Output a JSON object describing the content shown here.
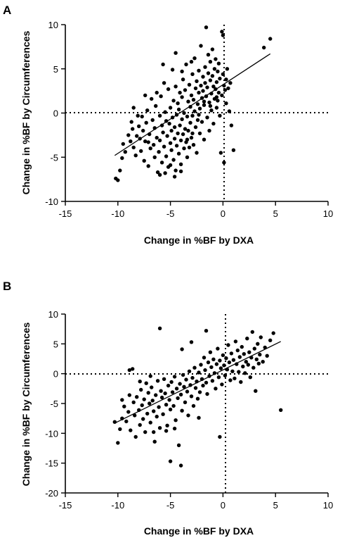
{
  "chart_data": [
    {
      "type": "scatter",
      "panel_label": "A",
      "xlabel": "Change in %BF by DXA",
      "ylabel": "Change in %BF by Circumferences",
      "xlim": [
        -15,
        10
      ],
      "ylim": [
        -10,
        10
      ],
      "xticks": [
        -15,
        -10,
        -5,
        0,
        5,
        10
      ],
      "yticks": [
        -10,
        -5,
        0,
        5,
        10
      ],
      "reference_lines": {
        "x": 0,
        "y": 0,
        "style": "dotted"
      },
      "fit_line": {
        "x": [
          -10.3,
          4.5
        ],
        "y": [
          -4.8,
          6.7
        ]
      },
      "points": [
        [
          -10.2,
          -7.4
        ],
        [
          -10.0,
          -7.6
        ],
        [
          -9.8,
          -6.5
        ],
        [
          -9.6,
          -5.1
        ],
        [
          -9.5,
          -3.5
        ],
        [
          -9.3,
          -4.4
        ],
        [
          -9.0,
          -2.5
        ],
        [
          -8.8,
          -3.2
        ],
        [
          -8.7,
          -1.0
        ],
        [
          -8.6,
          -1.8
        ],
        [
          -8.5,
          0.6
        ],
        [
          -8.5,
          -3.9
        ],
        [
          -8.3,
          -4.8
        ],
        [
          -8.2,
          -2.6
        ],
        [
          -8.0,
          -1.5
        ],
        [
          -7.9,
          -2.9
        ],
        [
          -7.8,
          -4.3
        ],
        [
          -7.7,
          -0.4
        ],
        [
          -7.6,
          -2.0
        ],
        [
          -7.5,
          -5.4
        ],
        [
          -7.4,
          -3.2
        ],
        [
          -7.3,
          -1.1
        ],
        [
          -7.2,
          0.3
        ],
        [
          -7.1,
          -6.0
        ],
        [
          -7.0,
          -2.4
        ],
        [
          -6.9,
          -4.0
        ],
        [
          -6.8,
          1.6
        ],
        [
          -6.7,
          -0.8
        ],
        [
          -6.6,
          -3.6
        ],
        [
          -6.5,
          -5.0
        ],
        [
          -6.5,
          -1.7
        ],
        [
          -6.4,
          0.8
        ],
        [
          -6.3,
          -2.8
        ],
        [
          -6.2,
          -6.7
        ],
        [
          -6.1,
          -4.4
        ],
        [
          -6.0,
          -0.3
        ],
        [
          -6.0,
          -3.1
        ],
        [
          -5.9,
          1.9
        ],
        [
          -5.8,
          -5.6
        ],
        [
          -5.8,
          -1.4
        ],
        [
          -5.7,
          -2.2
        ],
        [
          -5.6,
          3.4
        ],
        [
          -5.6,
          -3.8
        ],
        [
          -5.5,
          0.1
        ],
        [
          -5.4,
          -4.9
        ],
        [
          -5.4,
          -0.9
        ],
        [
          -5.3,
          -2.6
        ],
        [
          -5.2,
          2.7
        ],
        [
          -5.2,
          -6.1
        ],
        [
          -5.1,
          -1.2
        ],
        [
          -5.0,
          -3.4
        ],
        [
          -5.0,
          0.6
        ],
        [
          -4.9,
          -4.2
        ],
        [
          -4.9,
          -2.0
        ],
        [
          -4.8,
          4.9
        ],
        [
          -4.8,
          -0.5
        ],
        [
          -4.7,
          -5.3
        ],
        [
          -4.7,
          1.4
        ],
        [
          -4.6,
          -2.9
        ],
        [
          -4.6,
          -1.6
        ],
        [
          -4.5,
          -6.5
        ],
        [
          -4.5,
          3.0
        ],
        [
          -4.4,
          -3.7
        ],
        [
          -4.4,
          -0.2
        ],
        [
          -4.3,
          -2.3
        ],
        [
          -4.3,
          1.1
        ],
        [
          -4.2,
          -4.6
        ],
        [
          -4.2,
          0.4
        ],
        [
          -4.1,
          -1.4
        ],
        [
          -4.1,
          2.3
        ],
        [
          -4.0,
          -3.1
        ],
        [
          -4.0,
          -5.8
        ],
        [
          -3.9,
          -0.7
        ],
        [
          -3.9,
          1.8
        ],
        [
          -3.8,
          -2.4
        ],
        [
          -3.8,
          3.8
        ],
        [
          -3.7,
          -4.0
        ],
        [
          -3.7,
          0.0
        ],
        [
          -3.6,
          -1.8
        ],
        [
          -3.6,
          2.6
        ],
        [
          -3.5,
          -3.3
        ],
        [
          -3.5,
          5.5
        ],
        [
          -3.4,
          -0.4
        ],
        [
          -3.4,
          -5.0
        ],
        [
          -3.3,
          1.3
        ],
        [
          -3.3,
          -2.0
        ],
        [
          -3.2,
          3.2
        ],
        [
          -3.2,
          -3.9
        ],
        [
          -3.1,
          0.7
        ],
        [
          -3.1,
          -1.1
        ],
        [
          -3.0,
          2.0
        ],
        [
          -3.0,
          -2.8
        ],
        [
          -2.9,
          4.4
        ],
        [
          -2.9,
          -0.3
        ],
        [
          -2.8,
          1.5
        ],
        [
          -2.8,
          -3.6
        ],
        [
          -2.7,
          6.2
        ],
        [
          -2.7,
          0.2
        ],
        [
          -2.6,
          2.8
        ],
        [
          -2.6,
          -1.6
        ],
        [
          -2.5,
          3.6
        ],
        [
          -2.5,
          -4.5
        ],
        [
          -2.4,
          1.0
        ],
        [
          -2.4,
          -0.8
        ],
        [
          -2.3,
          4.8
        ],
        [
          -2.3,
          2.3
        ],
        [
          -2.2,
          -2.3
        ],
        [
          -2.2,
          0.5
        ],
        [
          -2.1,
          3.1
        ],
        [
          -2.1,
          7.6
        ],
        [
          -2.0,
          1.7
        ],
        [
          -2.0,
          -1.0
        ],
        [
          -1.9,
          4.1
        ],
        [
          -1.9,
          2.5
        ],
        [
          -1.8,
          -3.0
        ],
        [
          -1.8,
          0.9
        ],
        [
          -1.7,
          5.2
        ],
        [
          -1.7,
          3.4
        ],
        [
          -1.6,
          9.7
        ],
        [
          -1.6,
          1.9
        ],
        [
          -1.5,
          -0.5
        ],
        [
          -1.5,
          2.9
        ],
        [
          -1.4,
          4.5
        ],
        [
          -1.4,
          6.6
        ],
        [
          -1.3,
          1.2
        ],
        [
          -1.3,
          -2.0
        ],
        [
          -1.2,
          3.7
        ],
        [
          -1.2,
          5.8
        ],
        [
          -1.1,
          2.2
        ],
        [
          -1.1,
          0.3
        ],
        [
          -1.0,
          4.2
        ],
        [
          -1.0,
          7.2
        ],
        [
          -0.9,
          3.0
        ],
        [
          -0.9,
          -1.2
        ],
        [
          -0.8,
          1.6
        ],
        [
          -0.8,
          5.0
        ],
        [
          -0.7,
          2.7
        ],
        [
          -0.7,
          6.1
        ],
        [
          -0.6,
          3.5
        ],
        [
          -0.6,
          0.6
        ],
        [
          -0.5,
          4.7
        ],
        [
          -0.5,
          1.4
        ],
        [
          -0.4,
          2.3
        ],
        [
          -0.4,
          5.6
        ],
        [
          -0.3,
          3.9
        ],
        [
          -0.3,
          -0.3
        ],
        [
          -0.2,
          -4.5
        ],
        [
          -0.1,
          9.2
        ],
        [
          -0.1,
          2.0
        ],
        [
          0.0,
          8.8
        ],
        [
          0.0,
          4.4
        ],
        [
          0.1,
          3.1
        ],
        [
          0.1,
          -5.6
        ],
        [
          0.2,
          2.6
        ],
        [
          0.3,
          1.1
        ],
        [
          0.3,
          3.8
        ],
        [
          0.4,
          5.0
        ],
        [
          0.5,
          2.8
        ],
        [
          0.6,
          0.2
        ],
        [
          0.7,
          3.4
        ],
        [
          0.8,
          -1.4
        ],
        [
          1.0,
          -4.2
        ],
        [
          3.9,
          7.4
        ],
        [
          4.5,
          8.4
        ],
        [
          -7.1,
          -3.3
        ],
        [
          -6.0,
          -7.0
        ],
        [
          -5.5,
          -6.8
        ],
        [
          -5.0,
          -5.9
        ],
        [
          -4.6,
          -7.2
        ],
        [
          -4.0,
          -6.6
        ],
        [
          -3.4,
          -3.0
        ],
        [
          -2.9,
          -2.3
        ],
        [
          -2.3,
          -0.2
        ],
        [
          -1.8,
          1.3
        ],
        [
          -1.2,
          0.8
        ],
        [
          -0.6,
          1.8
        ],
        [
          -6.3,
          2.3
        ],
        [
          -7.4,
          2.0
        ],
        [
          -8.1,
          -0.3
        ],
        [
          -5.7,
          5.5
        ],
        [
          -4.5,
          6.8
        ],
        [
          -3.9,
          4.7
        ],
        [
          -3.0,
          5.8
        ]
      ]
    },
    {
      "type": "scatter",
      "panel_label": "B",
      "xlabel": "Change in %BF by DXA",
      "ylabel": "Change in %BF by Circumferences",
      "xlim": [
        -15,
        10
      ],
      "ylim": [
        -20,
        10
      ],
      "xticks": [
        -15,
        -10,
        -5,
        0,
        5,
        10
      ],
      "yticks": [
        -20,
        -15,
        -10,
        -5,
        0,
        5,
        10
      ],
      "reference_lines": {
        "x": 0,
        "y": 0,
        "style": "dotted"
      },
      "fit_line": {
        "x": [
          -10.3,
          5.5
        ],
        "y": [
          -8.3,
          5.4
        ]
      },
      "points": [
        [
          -10.3,
          -8.1
        ],
        [
          -10.0,
          -11.6
        ],
        [
          -9.8,
          -9.3
        ],
        [
          -9.6,
          -7.5
        ],
        [
          -9.4,
          -5.5
        ],
        [
          -9.2,
          -8.0
        ],
        [
          -9.0,
          -6.4
        ],
        [
          -8.9,
          0.6
        ],
        [
          -8.8,
          -9.5
        ],
        [
          -8.6,
          0.8
        ],
        [
          -8.5,
          -4.8
        ],
        [
          -8.4,
          -7.0
        ],
        [
          -8.3,
          -10.6
        ],
        [
          -8.2,
          -3.9
        ],
        [
          -8.0,
          -6.1
        ],
        [
          -7.9,
          -8.6
        ],
        [
          -7.8,
          -2.7
        ],
        [
          -7.7,
          -5.3
        ],
        [
          -7.6,
          -7.6
        ],
        [
          -7.5,
          -4.3
        ],
        [
          -7.4,
          -9.8
        ],
        [
          -7.3,
          -1.6
        ],
        [
          -7.2,
          -6.7
        ],
        [
          -7.1,
          -3.2
        ],
        [
          -7.0,
          -5.0
        ],
        [
          -6.9,
          -8.2
        ],
        [
          -6.8,
          -2.3
        ],
        [
          -6.7,
          -4.5
        ],
        [
          -6.6,
          -6.3
        ],
        [
          -6.5,
          -11.4
        ],
        [
          -6.4,
          -3.6
        ],
        [
          -6.3,
          -7.2
        ],
        [
          -6.2,
          -1.2
        ],
        [
          -6.1,
          -5.6
        ],
        [
          -6.0,
          -9.1
        ],
        [
          -6.0,
          7.6
        ],
        [
          -5.9,
          -2.9
        ],
        [
          -5.8,
          -4.0
        ],
        [
          -5.7,
          -6.8
        ],
        [
          -5.6,
          -0.9
        ],
        [
          -5.5,
          -3.3
        ],
        [
          -5.4,
          -5.2
        ],
        [
          -5.3,
          -8.7
        ],
        [
          -5.2,
          -2.0
        ],
        [
          -5.1,
          -4.4
        ],
        [
          -5.0,
          -14.7
        ],
        [
          -5.0,
          -6.0
        ],
        [
          -4.9,
          -1.4
        ],
        [
          -4.8,
          -3.1
        ],
        [
          -4.7,
          -5.4
        ],
        [
          -4.6,
          -0.5
        ],
        [
          -4.5,
          -7.8
        ],
        [
          -4.4,
          -2.5
        ],
        [
          -4.3,
          -4.1
        ],
        [
          -4.2,
          -12.0
        ],
        [
          -4.1,
          -1.7
        ],
        [
          -4.0,
          -15.4
        ],
        [
          -4.0,
          -3.5
        ],
        [
          -3.9,
          -6.2
        ],
        [
          -3.8,
          -0.2
        ],
        [
          -3.7,
          -2.2
        ],
        [
          -3.6,
          -4.8
        ],
        [
          -3.5,
          -1.0
        ],
        [
          -3.4,
          -3.0
        ],
        [
          -3.3,
          -7.0
        ],
        [
          -3.2,
          0.4
        ],
        [
          -3.1,
          -1.9
        ],
        [
          -3.0,
          -3.8
        ],
        [
          -2.9,
          -0.7
        ],
        [
          -2.8,
          -5.4
        ],
        [
          -2.7,
          1.0
        ],
        [
          -2.6,
          -2.4
        ],
        [
          -2.5,
          -1.3
        ],
        [
          -2.4,
          -4.2
        ],
        [
          -2.3,
          0.2
        ],
        [
          -2.2,
          -3.1
        ],
        [
          -2.1,
          1.5
        ],
        [
          -2.0,
          -0.9
        ],
        [
          -1.9,
          -2.0
        ],
        [
          -1.8,
          2.7
        ],
        [
          -1.7,
          0.6
        ],
        [
          -1.6,
          -1.5
        ],
        [
          -1.5,
          -3.4
        ],
        [
          -1.4,
          1.9
        ],
        [
          -1.3,
          -0.4
        ],
        [
          -1.2,
          3.6
        ],
        [
          -1.1,
          1.1
        ],
        [
          -1.0,
          -1.2
        ],
        [
          -0.9,
          2.4
        ],
        [
          -0.8,
          0.1
        ],
        [
          -0.7,
          -2.5
        ],
        [
          -0.6,
          1.6
        ],
        [
          -0.5,
          4.2
        ],
        [
          -0.4,
          -0.6
        ],
        [
          -0.3,
          2.2
        ],
        [
          -0.2,
          0.9
        ],
        [
          -0.1,
          -1.8
        ],
        [
          0.0,
          3.1
        ],
        [
          0.1,
          1.4
        ],
        [
          0.2,
          -0.3
        ],
        [
          0.3,
          2.6
        ],
        [
          0.4,
          0.7
        ],
        [
          0.5,
          4.8
        ],
        [
          0.6,
          1.9
        ],
        [
          0.7,
          -1.1
        ],
        [
          0.8,
          3.4
        ],
        [
          0.9,
          0.4
        ],
        [
          1.0,
          2.3
        ],
        [
          1.1,
          -0.8
        ],
        [
          1.2,
          5.4
        ],
        [
          1.3,
          1.6
        ],
        [
          1.4,
          3.9
        ],
        [
          1.5,
          0.3
        ],
        [
          1.6,
          2.8
        ],
        [
          1.7,
          -1.4
        ],
        [
          1.8,
          4.5
        ],
        [
          1.9,
          1.2
        ],
        [
          2.0,
          3.3
        ],
        [
          2.1,
          0.1
        ],
        [
          2.2,
          2.0
        ],
        [
          2.3,
          5.9
        ],
        [
          2.4,
          1.5
        ],
        [
          2.5,
          3.6
        ],
        [
          2.6,
          -0.6
        ],
        [
          2.7,
          2.7
        ],
        [
          2.8,
          7.0
        ],
        [
          2.9,
          1.0
        ],
        [
          3.0,
          4.2
        ],
        [
          3.1,
          -2.9
        ],
        [
          3.2,
          2.4
        ],
        [
          3.3,
          5.0
        ],
        [
          3.4,
          1.7
        ],
        [
          3.5,
          3.2
        ],
        [
          3.6,
          6.1
        ],
        [
          3.8,
          2.0
        ],
        [
          4.0,
          4.4
        ],
        [
          4.2,
          3.0
        ],
        [
          4.5,
          5.6
        ],
        [
          4.8,
          6.8
        ],
        [
          5.5,
          -6.1
        ],
        [
          -1.6,
          7.2
        ],
        [
          -3.9,
          4.1
        ],
        [
          -0.3,
          -10.6
        ],
        [
          -6.6,
          -9.8
        ],
        [
          -7.9,
          -1.3
        ],
        [
          -5.4,
          -9.6
        ],
        [
          -2.3,
          -7.4
        ],
        [
          -4.6,
          -9.2
        ],
        [
          -8.9,
          -3.6
        ],
        [
          -9.6,
          -4.4
        ],
        [
          -6.9,
          -0.4
        ],
        [
          -3.0,
          5.3
        ]
      ]
    }
  ]
}
